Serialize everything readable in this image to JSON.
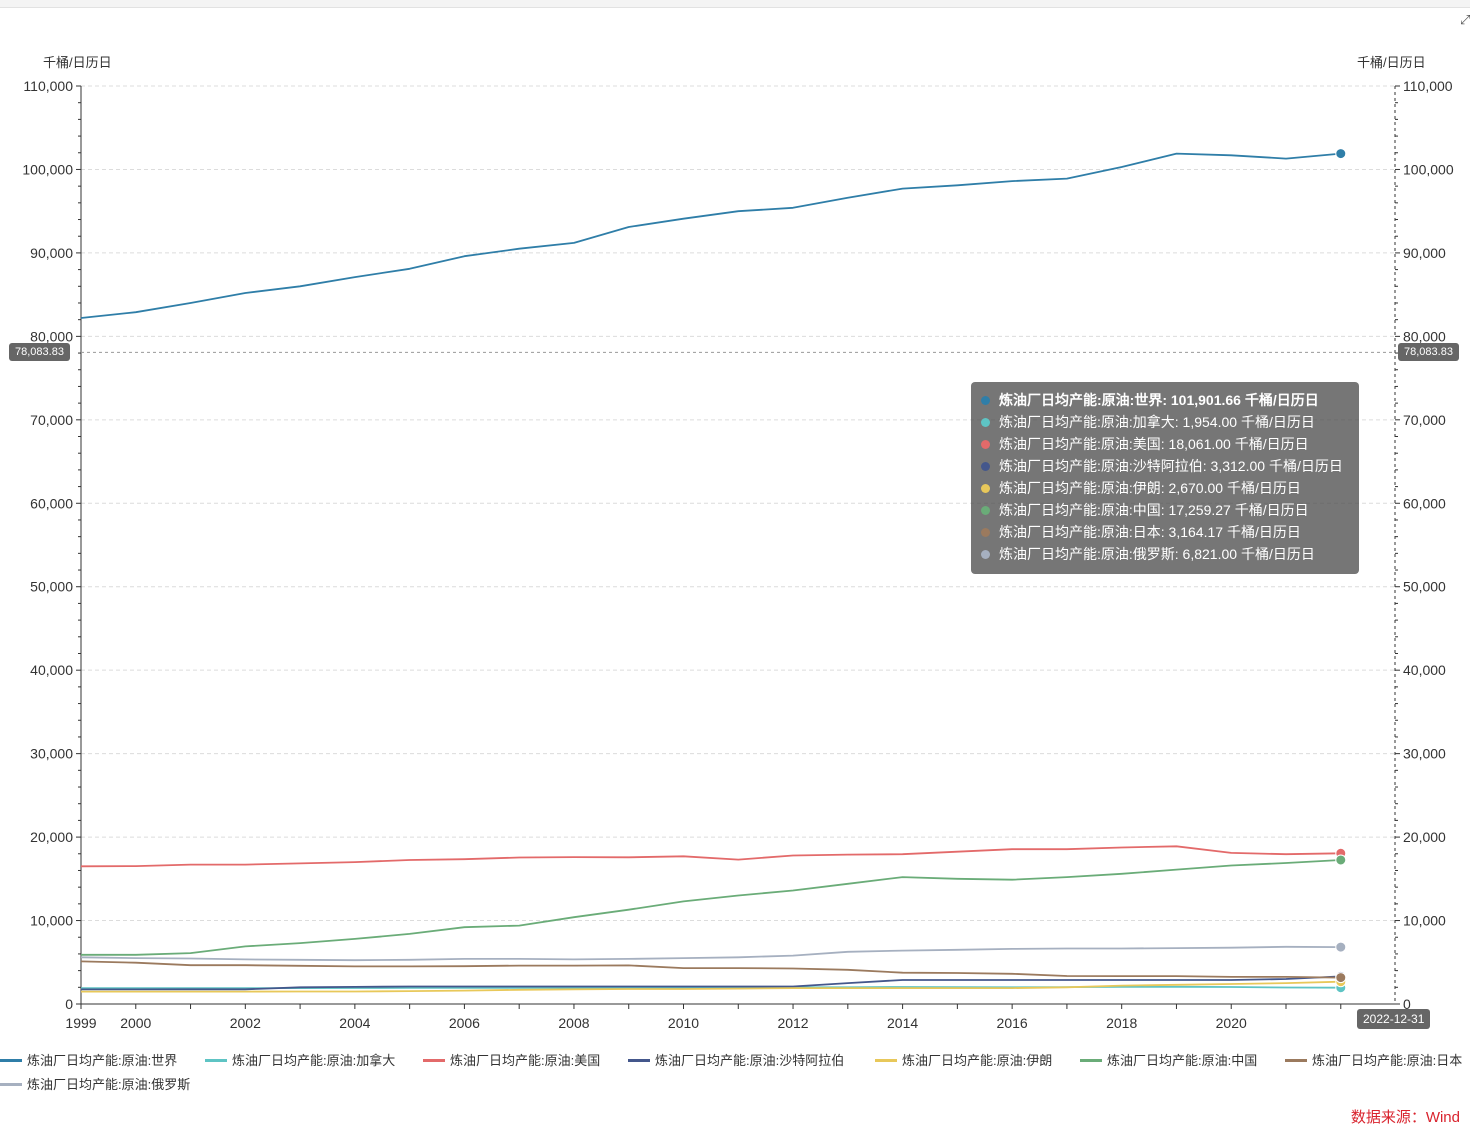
{
  "header": {
    "expand_icon": "expand-icon"
  },
  "units": {
    "left": "千桶/日历日",
    "right": "千桶/日历日"
  },
  "crosshair": {
    "y_value_label": "78,083.83",
    "x_value_label": "2022-12-31"
  },
  "source": "数据来源：Wind",
  "chart_data": {
    "type": "line",
    "x": [
      1999,
      2000,
      2001,
      2002,
      2003,
      2004,
      2005,
      2006,
      2007,
      2008,
      2009,
      2010,
      2011,
      2012,
      2013,
      2014,
      2015,
      2016,
      2017,
      2018,
      2019,
      2020,
      2021,
      2022
    ],
    "xlim": [
      1999,
      2022.99
    ],
    "x_ticks": [
      "1999",
      "2000",
      "2002",
      "2004",
      "2006",
      "2008",
      "2010",
      "2012",
      "2014",
      "2016",
      "2018",
      "2020"
    ],
    "ylim": [
      0,
      110000
    ],
    "y_ticks": [
      "0",
      "10,000",
      "20,000",
      "30,000",
      "40,000",
      "50,000",
      "60,000",
      "70,000",
      "80,000",
      "90,000",
      "100,000",
      "110,000"
    ],
    "grid": true,
    "legend_position": "bottom",
    "series": [
      {
        "name": "炼油厂日均产能:原油:世界",
        "color": "#2f7ea8",
        "values": [
          82200,
          82900,
          84000,
          85200,
          86000,
          87100,
          88100,
          89600,
          90500,
          91200,
          93100,
          94100,
          95000,
          95400,
          96600,
          97700,
          98100,
          98600,
          98900,
          100300,
          101900,
          101700,
          101300,
          101901.66
        ]
      },
      {
        "name": "炼油厂日均产能:原油:加拿大",
        "color": "#5ec4c4",
        "values": [
          1890,
          1900,
          1910,
          1910,
          1910,
          1920,
          1930,
          1930,
          1940,
          1950,
          1960,
          1960,
          1980,
          2000,
          2000,
          2040,
          2030,
          2000,
          2020,
          2050,
          2060,
          2040,
          1980,
          1954.0
        ]
      },
      {
        "name": "炼油厂日均产能:原油:美国",
        "color": "#e36a6a",
        "values": [
          16500,
          16520,
          16700,
          16700,
          16850,
          17000,
          17250,
          17350,
          17550,
          17600,
          17580,
          17700,
          17300,
          17800,
          17900,
          17950,
          18250,
          18550,
          18550,
          18750,
          18900,
          18100,
          17950,
          18061.0
        ]
      },
      {
        "name": "炼油厂日均产能:原油:沙特阿拉伯",
        "color": "#44578c",
        "values": [
          1750,
          1750,
          1760,
          1760,
          2000,
          2050,
          2100,
          2100,
          2100,
          2100,
          2100,
          2100,
          2100,
          2100,
          2500,
          2880,
          2880,
          2880,
          2880,
          2880,
          2880,
          2880,
          3000,
          3312.0
        ]
      },
      {
        "name": "炼油厂日均产能:原油:伊朗",
        "color": "#e8c85a",
        "values": [
          1480,
          1480,
          1480,
          1480,
          1500,
          1500,
          1550,
          1600,
          1700,
          1760,
          1800,
          1800,
          1850,
          1900,
          1900,
          1900,
          1900,
          1900,
          2000,
          2200,
          2300,
          2400,
          2500,
          2670.0
        ]
      },
      {
        "name": "炼油厂日均产能:原油:中国",
        "color": "#6aac78",
        "values": [
          5900,
          5900,
          6100,
          6900,
          7300,
          7800,
          8400,
          9200,
          9400,
          10400,
          11300,
          12300,
          13000,
          13600,
          14400,
          15200,
          15000,
          14900,
          15200,
          15600,
          16100,
          16600,
          16900,
          17259.27
        ]
      },
      {
        "name": "炼油厂日均产能:原油:日本",
        "color": "#9b7a5e",
        "values": [
          5100,
          4950,
          4650,
          4650,
          4580,
          4500,
          4500,
          4530,
          4600,
          4600,
          4620,
          4300,
          4300,
          4250,
          4100,
          3750,
          3720,
          3620,
          3350,
          3340,
          3340,
          3250,
          3250,
          3164.17
        ]
      },
      {
        "name": "炼油厂日均产能:原油:俄罗斯",
        "color": "#a6b0c0",
        "values": [
          5600,
          5500,
          5450,
          5350,
          5300,
          5250,
          5300,
          5400,
          5400,
          5350,
          5400,
          5500,
          5600,
          5800,
          6250,
          6400,
          6500,
          6600,
          6650,
          6650,
          6700,
          6750,
          6850,
          6821.0
        ]
      }
    ]
  },
  "tooltip": {
    "rows": [
      {
        "label": "炼油厂日均产能:原油:世界: 101,901.66  千桶/日历日",
        "color": "#2f7ea8"
      },
      {
        "label": "炼油厂日均产能:原油:加拿大: 1,954.00  千桶/日历日",
        "color": "#5ec4c4"
      },
      {
        "label": "炼油厂日均产能:原油:美国: 18,061.00  千桶/日历日",
        "color": "#e36a6a"
      },
      {
        "label": "炼油厂日均产能:原油:沙特阿拉伯: 3,312.00  千桶/日历日",
        "color": "#44578c"
      },
      {
        "label": "炼油厂日均产能:原油:伊朗: 2,670.00  千桶/日历日",
        "color": "#e8c85a"
      },
      {
        "label": "炼油厂日均产能:原油:中国: 17,259.27  千桶/日历日",
        "color": "#6aac78"
      },
      {
        "label": "炼油厂日均产能:原油:日本: 3,164.17  千桶/日历日",
        "color": "#9b7a5e"
      },
      {
        "label": "炼油厂日均产能:原油:俄罗斯: 6,821.00  千桶/日历日",
        "color": "#a6b0c0"
      }
    ]
  }
}
